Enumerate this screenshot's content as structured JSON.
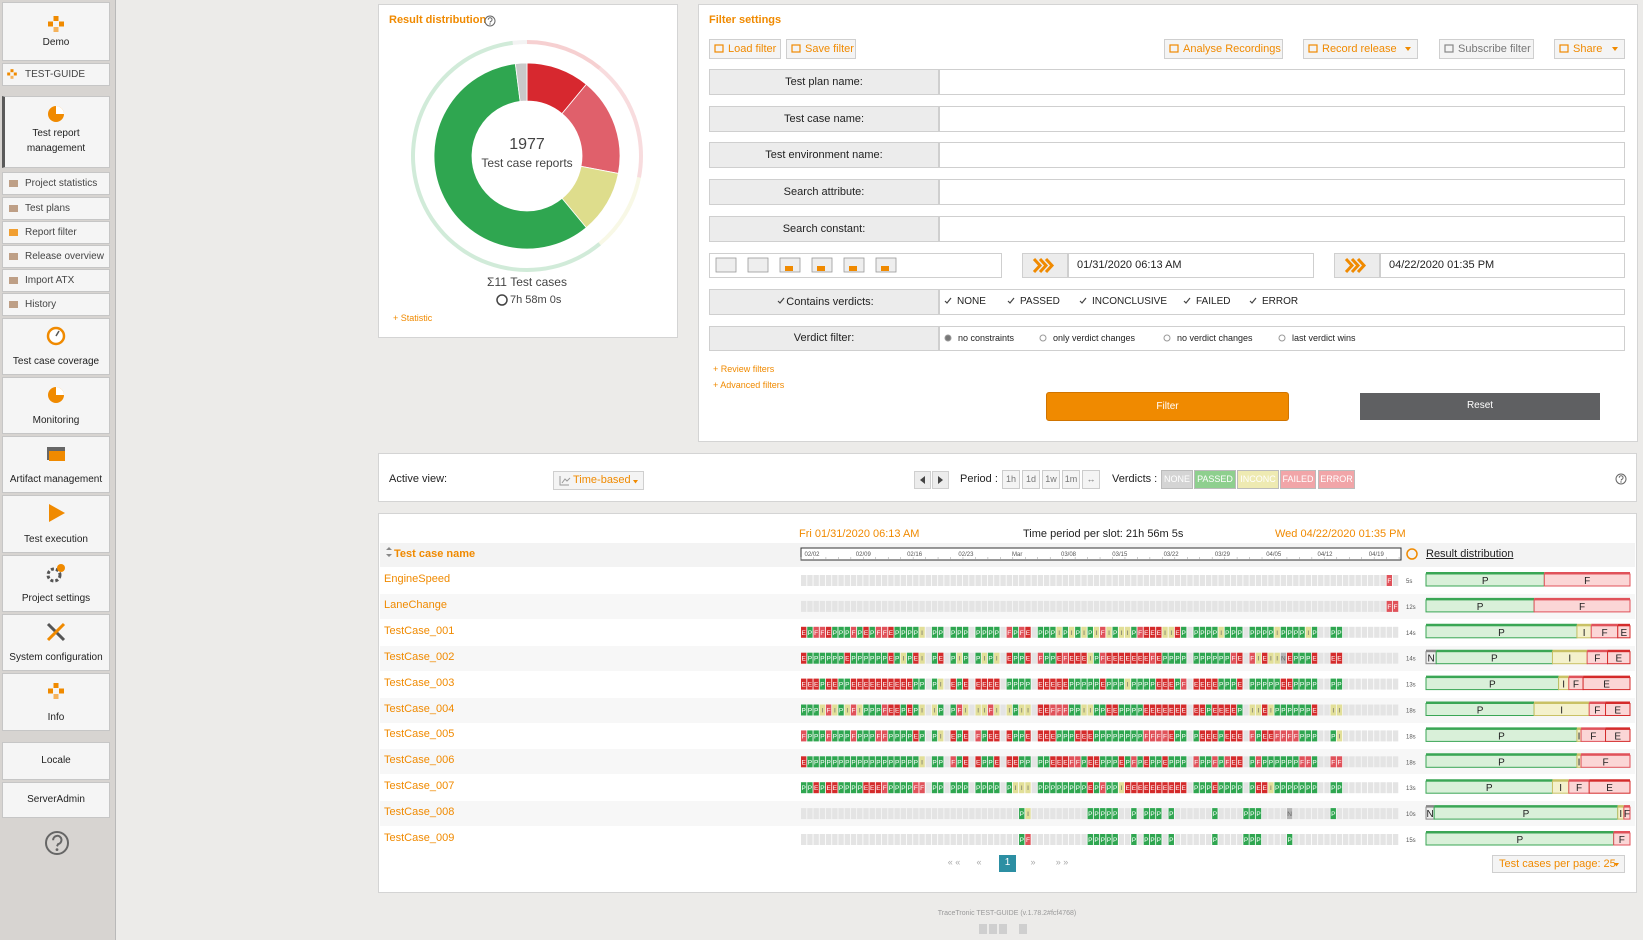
{
  "sidebar": {
    "brand": "Demo",
    "project": "TEST-GUIDE",
    "items": [
      "Test report management",
      "Project statistics",
      "Test plans",
      "Report filter",
      "Release overview",
      "Import ATX",
      "History",
      "Test case coverage",
      "Monitoring",
      "Artifact management",
      "Test execution",
      "Project settings",
      "System configuration",
      "Info",
      "Locale",
      "ServerAdmin"
    ]
  },
  "result_distribution": {
    "title": "Result distribution",
    "total": 1977,
    "total_label": "Test case reports",
    "test_cases": "Σ11 Test cases",
    "duration": "7h 58m 0s",
    "link": "+ Statistic",
    "chart": {
      "type": "pie",
      "values": [
        11,
        17,
        11,
        59,
        2
      ],
      "colors": [
        "#d7282f",
        "#e0606b",
        "#dedd8c",
        "#2fa650",
        "#c9c9c9"
      ]
    }
  },
  "filter": {
    "title": "Filter settings",
    "buttons": [
      "Load filter",
      "Save filter",
      "Analyse Recordings",
      "Record release",
      "Subscribe filter",
      "Share"
    ],
    "fields": [
      "Test plan name:",
      "Test case name:",
      "Test environment name:",
      "Search attribute:",
      "Search constant:"
    ],
    "date_from": "01/31/2020 06:13 AM",
    "date_to": "04/22/2020 01:35 PM",
    "verdicts_label": "Contains verdicts:",
    "verdicts": [
      "NONE",
      "PASSED",
      "INCONCLUSIVE",
      "FAILED",
      "ERROR"
    ],
    "verdict_filter_label": "Verdict filter:",
    "verdict_filter_options": [
      "no constraints",
      "only verdict changes",
      "no verdict changes",
      "last verdict wins"
    ],
    "links": [
      "+ Review filters",
      "+ Advanced filters"
    ],
    "filter_button": "Filter",
    "reset_button": "Reset"
  },
  "view_bar": {
    "active_view_label": "Active view:",
    "active_view": "Time-based",
    "period_label": "Period :",
    "periods": [
      "1h",
      "1d",
      "1w",
      "1m",
      "↔"
    ],
    "verdicts_label": "Verdicts :",
    "verdict_chips": [
      {
        "label": "NONE",
        "color": "#d4d4d4"
      },
      {
        "label": "PASSED",
        "color": "#8ecf8e"
      },
      {
        "label": "INCONC",
        "color": "#eeeab2"
      },
      {
        "label": "FAILED",
        "color": "#f1a5a8"
      },
      {
        "label": "ERROR",
        "color": "#f1a5a8"
      }
    ]
  },
  "table": {
    "start": "Fri 01/31/2020 06:13 AM",
    "slot": "Time period per slot: 21h 56m 5s",
    "end": "Wed 04/22/2020 01:35 PM",
    "name_header": "Test case name",
    "distribution_header": "Result distribution",
    "axis_labels": [
      "02/02",
      "02/09",
      "02/16",
      "02/23",
      "Mar",
      "03/08",
      "03/15",
      "03/22",
      "03/29",
      "04/05",
      "04/12",
      "04/19"
    ],
    "cell_colors": {
      ".": "#e4e4e4",
      "P": "#2fa650",
      "F": "#e0525a",
      "E": "#d42b2b",
      "I": "#e2df98",
      "N": "#b4b4b4"
    },
    "bar_colors": {
      "P": {
        "fill": "#d9f0d9",
        "stroke": "#3aa655"
      },
      "F": {
        "fill": "#fbd6d6",
        "stroke": "#e0525a"
      },
      "E": {
        "fill": "#fbd6d6",
        "stroke": "#d42b2b"
      },
      "I": {
        "fill": "#f4f1cc",
        "stroke": "#c9c165"
      },
      "N": {
        "fill": "#eeeeee",
        "stroke": "#888888"
      }
    },
    "rows": [
      {
        "name": "EngineSpeed",
        "duration": "5s",
        "slots": "..............................................................................................F.",
        "distribution": [
          {
            "label": "P",
            "share": 58
          },
          {
            "label": "F",
            "share": 42
          }
        ]
      },
      {
        "name": "LaneChange",
        "duration": "12s",
        "slots": "..............................................................................................FF",
        "distribution": [
          {
            "label": "P",
            "share": 53
          },
          {
            "label": "F",
            "share": 47
          }
        ]
      },
      {
        "name": "TestCase_001",
        "duration": "14s",
        "slots": "EPFFEPPPFPEPFFEPPPPI.PP.PPP.PPPP.FPFE.PPPIPIPIPIFIPIIPFEEEIIEP.PPPPIPPP.PPPPIPPPPIP..PP.........",
        "distribution": [
          {
            "label": "P",
            "share": 74
          },
          {
            "label": "I",
            "share": 7
          },
          {
            "label": "F",
            "share": 13
          },
          {
            "label": "E",
            "share": 6
          }
        ]
      },
      {
        "name": "TestCase_002",
        "duration": "14s",
        "slots": "EPPPPPPEPPPPPPEPIPEI.PE.PIP.PIPI.EPPE.FPPEFEEEIPFEEEEEEEFEPPPP.PPPPPPFE.FIEIINEPPPE..EE.........",
        "distribution": [
          {
            "label": "N",
            "share": 5
          },
          {
            "label": "P",
            "share": 57
          },
          {
            "label": "I",
            "share": 17
          },
          {
            "label": "F",
            "share": 10
          },
          {
            "label": "E",
            "share": 11
          }
        ]
      },
      {
        "name": "TestCase_003",
        "duration": "13s",
        "slots": "EEEPEEPPEEEEEEEEEEPP.PI.EPE.EEEE.PPPP.EEEEEPPPPPEPPPIPPPPEEEPF.EEEEPPPE.PPPPPEEPPPP..PP.........",
        "distribution": [
          {
            "label": "P",
            "share": 65
          },
          {
            "label": "I",
            "share": 5
          },
          {
            "label": "F",
            "share": 7
          },
          {
            "label": "E",
            "share": 23
          }
        ]
      },
      {
        "name": "TestCase_004",
        "duration": "18s",
        "slots": "PPPIFIPIFIPPPFEEPEPI.IP.PFI.IIFI.IPII.EEFFFPPIIPPEEPPPPEEEEEEE.EEPEEEEP.IIEIPPPPPPE..II.........",
        "distribution": [
          {
            "label": "P",
            "share": 53
          },
          {
            "label": "I",
            "share": 27
          },
          {
            "label": "F",
            "share": 8
          },
          {
            "label": "E",
            "share": 12
          }
        ]
      },
      {
        "name": "TestCase_005",
        "duration": "18s",
        "slots": "FPPPFPPPFPPPFFPPPPEP.PI.EPE.FPEE.EPPE.EEEPPPEEEPPPPPPPPFFFFEPP.PEEEPEEE.FPEEFFFFPPP..PI.........",
        "distribution": [
          {
            "label": "P",
            "share": 74
          },
          {
            "label": "I",
            "share": 2
          },
          {
            "label": "F",
            "share": 12
          },
          {
            "label": "E",
            "share": 12
          }
        ]
      },
      {
        "name": "TestCase_006",
        "duration": "18s",
        "slots": "EPPPPPPPPPPPPPPPPPPI.PP.FPE.EPPE.EEPP.PPEEEFFPEEPPPEPFPEPPEPPP.FPPFPFEE.PFPPPPPPFFP..FF.........",
        "distribution": [
          {
            "label": "P",
            "share": 74
          },
          {
            "label": "I",
            "share": 2
          },
          {
            "label": "F",
            "share": 24
          }
        ]
      },
      {
        "name": "TestCase_007",
        "duration": "13s",
        "slots": "PPEPEEPPPPEEEFPPPPFF.PP.PPP.PPPP.PIII.PPPPPPPPEPFPPIEEEEEEEEEE.PPPEPPPP.PEEIPPPPPPP..PP.........",
        "distribution": [
          {
            "label": "P",
            "share": 62
          },
          {
            "label": "I",
            "share": 8
          },
          {
            "label": "F",
            "share": 10
          },
          {
            "label": "E",
            "share": 20
          }
        ]
      },
      {
        "name": "TestCase_008",
        "duration": "10s",
        "slots": "...................................PI.........PPPPP..P.PPP.P......P....PPP....N......P..........",
        "distribution": [
          {
            "label": "N",
            "share": 4
          },
          {
            "label": "P",
            "share": 90
          },
          {
            "label": "I",
            "share": 3
          },
          {
            "label": "F",
            "share": 3
          }
        ]
      },
      {
        "name": "TestCase_009",
        "duration": "15s",
        "slots": "...................................PF.........PPPPP..P.PPP.P......P....PPP....P.................",
        "distribution": [
          {
            "label": "P",
            "share": 92
          },
          {
            "label": "F",
            "share": 8
          }
        ]
      }
    ],
    "pagination": [
      "« «",
      "«",
      "1",
      "»",
      "» »"
    ],
    "per_page": "Test cases per page: 25"
  },
  "footer": "TraceTronic TEST-GUIDE (v.1.78.2#fcf4768)"
}
